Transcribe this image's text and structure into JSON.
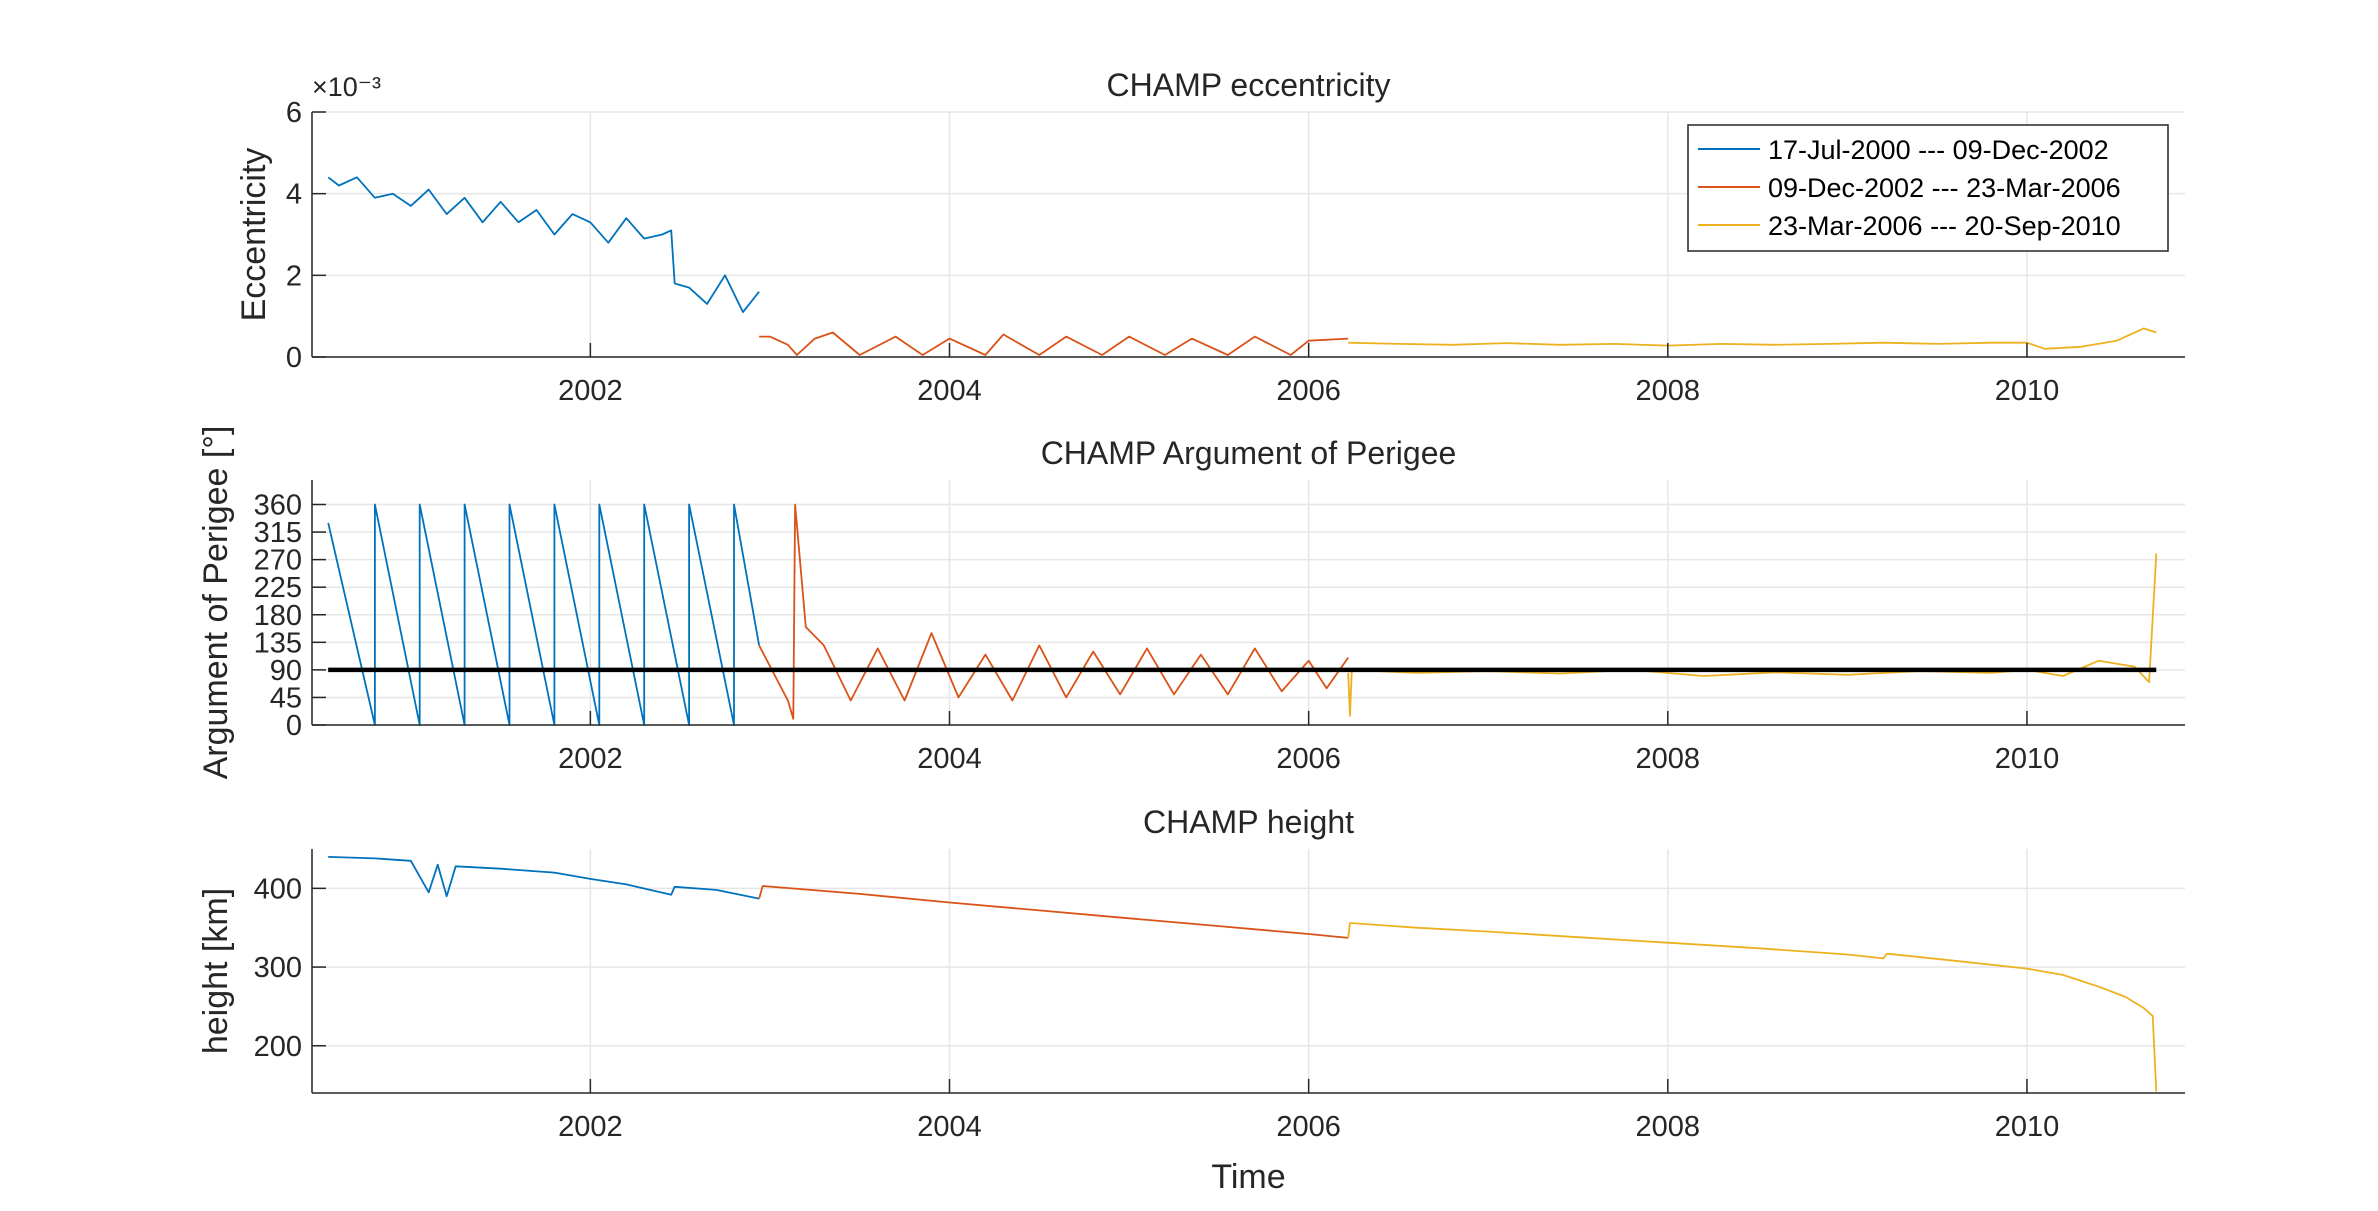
{
  "figure": {
    "xlabel": "Time"
  },
  "legend": {
    "placement": "top-right",
    "entries": [
      {
        "label": "17-Jul-2000 --- 09-Dec-2002",
        "color": "#0072BD"
      },
      {
        "label": "09-Dec-2002 --- 23-Mar-2006",
        "color": "#D95319"
      },
      {
        "label": "23-Mar-2006 --- 20-Sep-2010",
        "color": "#EDB120"
      }
    ]
  },
  "chart_data": [
    {
      "type": "line",
      "title": "CHAMP eccentricity",
      "xlabel": "",
      "ylabel": "Eccentricity",
      "y_exponent": "×10⁻³",
      "xlim": [
        2000.45,
        2010.88
      ],
      "ylim": [
        0,
        6
      ],
      "xticks": [
        "2002",
        "2004",
        "2006",
        "2008",
        "2010"
      ],
      "yticks": [
        "0",
        "2",
        "4",
        "6"
      ],
      "grid": true,
      "series": [
        {
          "name": "17-Jul-2000 --- 09-Dec-2002",
          "color": "#0072BD",
          "x": [
            2000.54,
            2000.6,
            2000.7,
            2000.8,
            2000.9,
            2001.0,
            2001.1,
            2001.2,
            2001.3,
            2001.4,
            2001.5,
            2001.6,
            2001.7,
            2001.8,
            2001.9,
            2002.0,
            2002.1,
            2002.2,
            2002.3,
            2002.4,
            2002.45,
            2002.47,
            2002.55,
            2002.65,
            2002.75,
            2002.85,
            2002.94
          ],
          "y": [
            4.4,
            4.2,
            4.4,
            3.9,
            4.0,
            3.7,
            4.1,
            3.5,
            3.9,
            3.3,
            3.8,
            3.3,
            3.6,
            3.0,
            3.5,
            3.3,
            2.8,
            3.4,
            2.9,
            3.0,
            3.1,
            1.8,
            1.7,
            1.3,
            2.0,
            1.1,
            1.6
          ]
        },
        {
          "name": "09-Dec-2002 --- 23-Mar-2006",
          "color": "#D95319",
          "x": [
            2002.94,
            2003.0,
            2003.1,
            2003.15,
            2003.25,
            2003.35,
            2003.5,
            2003.7,
            2003.85,
            2004.0,
            2004.2,
            2004.3,
            2004.5,
            2004.65,
            2004.85,
            2005.0,
            2005.2,
            2005.35,
            2005.55,
            2005.7,
            2005.9,
            2006.0,
            2006.22
          ],
          "y": [
            0.5,
            0.5,
            0.3,
            0.05,
            0.45,
            0.6,
            0.05,
            0.5,
            0.05,
            0.45,
            0.05,
            0.55,
            0.05,
            0.5,
            0.05,
            0.5,
            0.05,
            0.45,
            0.05,
            0.5,
            0.05,
            0.4,
            0.45
          ]
        },
        {
          "name": "23-Mar-2006 --- 20-Sep-2010",
          "color": "#EDB120",
          "x": [
            2006.22,
            2006.5,
            2006.8,
            2007.1,
            2007.4,
            2007.7,
            2008.0,
            2008.3,
            2008.6,
            2008.9,
            2009.2,
            2009.5,
            2009.8,
            2010.0,
            2010.1,
            2010.3,
            2010.5,
            2010.65,
            2010.72
          ],
          "y": [
            0.35,
            0.32,
            0.3,
            0.34,
            0.3,
            0.32,
            0.28,
            0.32,
            0.3,
            0.32,
            0.35,
            0.32,
            0.35,
            0.35,
            0.2,
            0.25,
            0.4,
            0.7,
            0.6
          ]
        }
      ]
    },
    {
      "type": "line",
      "title": "CHAMP Argument of Perigee",
      "xlabel": "",
      "ylabel": "Argument of Perigee [°]",
      "xlim": [
        2000.45,
        2010.88
      ],
      "ylim": [
        0,
        400
      ],
      "xticks": [
        "2002",
        "2004",
        "2006",
        "2008",
        "2010"
      ],
      "yticks": [
        "0",
        "45",
        "90",
        "135",
        "180",
        "225",
        "270",
        "315",
        "360"
      ],
      "grid": true,
      "reference_line": {
        "y": 90,
        "x": [
          2000.54,
          2010.72
        ],
        "color": "#000000"
      },
      "series": [
        {
          "name": "17-Jul-2000 --- 09-Dec-2002",
          "color": "#0072BD",
          "x": [
            2000.54,
            2000.8,
            2000.8,
            2001.05,
            2001.05,
            2001.3,
            2001.3,
            2001.55,
            2001.55,
            2001.8,
            2001.8,
            2002.05,
            2002.05,
            2002.3,
            2002.3,
            2002.55,
            2002.55,
            2002.8,
            2002.8,
            2002.94
          ],
          "y": [
            330,
            0,
            360,
            0,
            360,
            0,
            360,
            0,
            360,
            0,
            360,
            0,
            360,
            0,
            360,
            0,
            360,
            0,
            360,
            130
          ]
        },
        {
          "name": "09-Dec-2002 --- 23-Mar-2006",
          "color": "#D95319",
          "x": [
            2002.94,
            2003.1,
            2003.13,
            2003.14,
            2003.2,
            2003.3,
            2003.45,
            2003.6,
            2003.75,
            2003.9,
            2004.05,
            2004.2,
            2004.35,
            2004.5,
            2004.65,
            2004.8,
            2004.95,
            2005.1,
            2005.25,
            2005.4,
            2005.55,
            2005.7,
            2005.85,
            2006.0,
            2006.1,
            2006.22
          ],
          "y": [
            130,
            40,
            10,
            360,
            160,
            130,
            40,
            125,
            40,
            150,
            45,
            115,
            40,
            130,
            45,
            120,
            50,
            125,
            50,
            115,
            50,
            125,
            55,
            105,
            60,
            110
          ]
        },
        {
          "name": "23-Mar-2006 --- 20-Sep-2010",
          "color": "#EDB120",
          "x": [
            2006.22,
            2006.23,
            2006.24,
            2006.6,
            2007.0,
            2007.4,
            2007.8,
            2008.2,
            2008.6,
            2009.0,
            2009.4,
            2009.8,
            2010.0,
            2010.2,
            2010.4,
            2010.6,
            2010.68,
            2010.72
          ],
          "y": [
            85,
            15,
            90,
            85,
            88,
            84,
            90,
            80,
            86,
            82,
            88,
            85,
            90,
            80,
            105,
            95,
            70,
            280
          ]
        }
      ]
    },
    {
      "type": "line",
      "title": "CHAMP height",
      "xlabel": "Time",
      "ylabel": "height [km]",
      "xlim": [
        2000.45,
        2010.88
      ],
      "ylim": [
        140,
        450
      ],
      "xticks": [
        "2002",
        "2004",
        "2006",
        "2008",
        "2010"
      ],
      "yticks": [
        "200",
        "300",
        "400"
      ],
      "grid": true,
      "series": [
        {
          "name": "17-Jul-2000 --- 09-Dec-2002",
          "color": "#0072BD",
          "x": [
            2000.54,
            2000.8,
            2001.0,
            2001.1,
            2001.15,
            2001.2,
            2001.25,
            2001.5,
            2001.8,
            2002.0,
            2002.2,
            2002.45,
            2002.47,
            2002.7,
            2002.94
          ],
          "y": [
            440,
            438,
            435,
            395,
            430,
            390,
            428,
            425,
            420,
            412,
            405,
            392,
            402,
            398,
            387
          ]
        },
        {
          "name": "09-Dec-2002 --- 23-Mar-2006",
          "color": "#D95319",
          "x": [
            2002.94,
            2002.96,
            2003.5,
            2004.0,
            2004.5,
            2005.0,
            2005.5,
            2006.0,
            2006.22
          ],
          "y": [
            387,
            403,
            393,
            382,
            372,
            362,
            352,
            342,
            337
          ]
        },
        {
          "name": "23-Mar-2006 --- 20-Sep-2010",
          "color": "#EDB120",
          "x": [
            2006.22,
            2006.23,
            2006.6,
            2007.0,
            2007.5,
            2008.0,
            2008.5,
            2009.0,
            2009.2,
            2009.22,
            2009.6,
            2010.0,
            2010.2,
            2010.4,
            2010.55,
            2010.65,
            2010.7,
            2010.72
          ],
          "y": [
            337,
            356,
            350,
            345,
            338,
            331,
            324,
            316,
            311,
            317,
            308,
            298,
            290,
            275,
            262,
            248,
            238,
            142
          ]
        }
      ]
    }
  ]
}
